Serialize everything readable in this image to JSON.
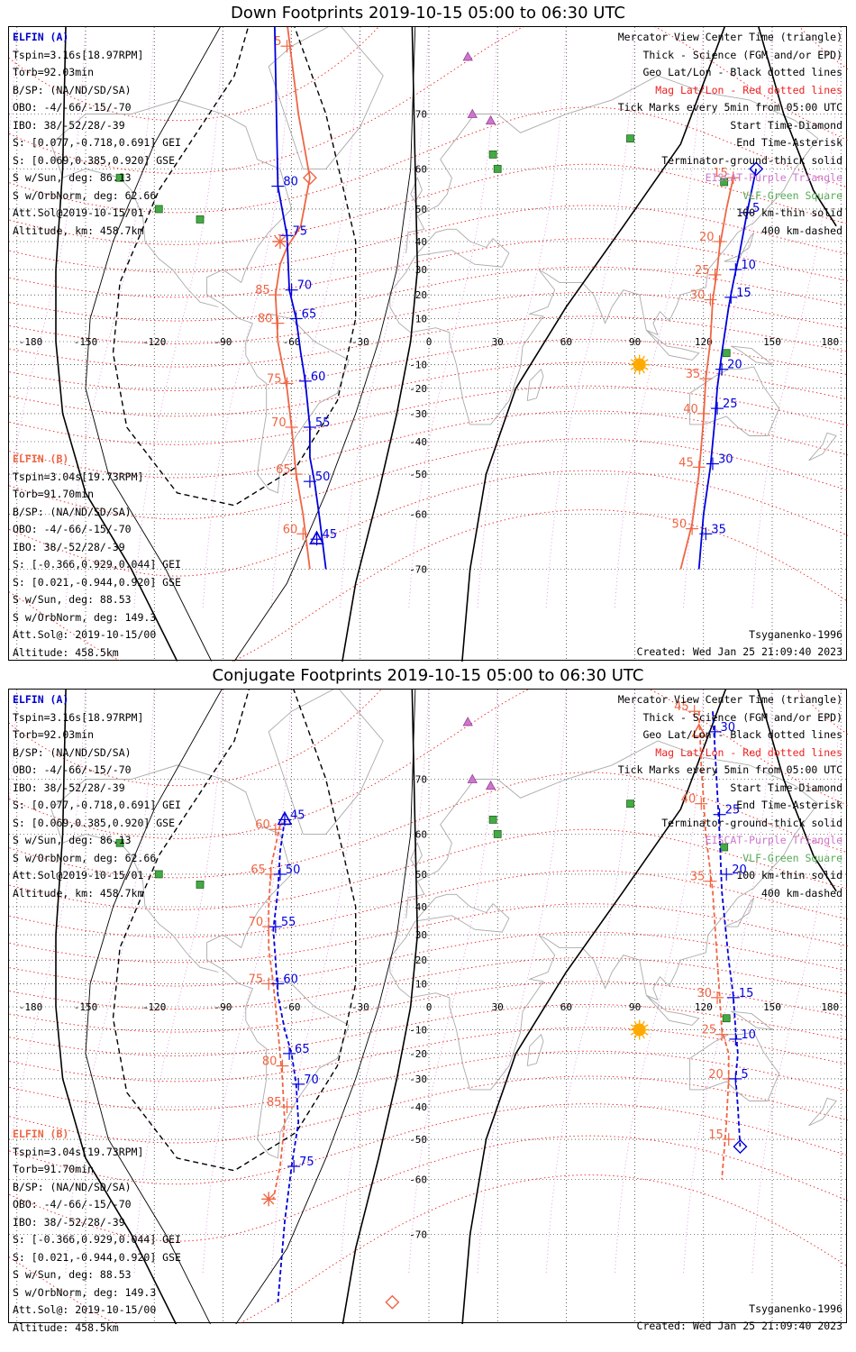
{
  "panels": [
    {
      "title": "Down Footprints 2019-10-15 05:00 to 06:30 UTC",
      "mode": "down"
    },
    {
      "title": "Conjugate Footprints 2019-10-15 05:00 to 06:30 UTC",
      "mode": "conjugate"
    }
  ],
  "legend_a": {
    "heading": "ELFIN (A)",
    "lines": [
      "Tspin=3.16s[18.97RPM]",
      "Torb=92.03min",
      "B/SP: (NA/ND/SD/SA)",
      "OBO: -4/-66/-15/-70",
      "IBO: 38/-52/28/-39",
      "S: [0.077,-0.718,0.691] GEI",
      "S: [0.069,0.385,0.920] GSE",
      "S w/Sun, deg: 86.13",
      "S w/OrbNorm, deg: 62.66",
      "Att.Sol@2019-10-15/01",
      "Altitude, km: 458.7km"
    ]
  },
  "legend_b": {
    "heading": "ELFIN (B)",
    "lines": [
      "Tspin=3.04s[19.73RPM]",
      "Torb=91.70min",
      "B/SP: (NA/ND/SD/SA)",
      "OBO: -4/-66/-15/-70",
      "IBO: 38/-52/28/-39",
      "S: [-0.366,0.929,0.044] GEI",
      "S: [0.021,-0.944,0.920] GSE",
      "S w/Sun, deg: 88.53",
      "S w/OrbNorm, deg: 149.3",
      "Att.Sol@: 2019-10-15/00",
      "Altitude: 458.5km"
    ]
  },
  "legend_right": [
    {
      "text": "Mercator View Center Time (triangle)",
      "color": "#000000"
    },
    {
      "text": "Thick - Science (FGM and/or EPD)",
      "color": "#000000"
    },
    {
      "text": "Geo Lat/Lon - Black dotted lines",
      "color": "#000000"
    },
    {
      "text": "Mag Lat/Lon - Red dotted lines",
      "color": "#ee2222"
    },
    {
      "text": "Tick Marks every 5min from 05:00 UTC",
      "color": "#000000"
    },
    {
      "text": "Start Time-Diamond",
      "color": "#000000"
    },
    {
      "text": "End Time-Asterisk",
      "color": "#000000"
    },
    {
      "text": "Terminator-ground-thick solid",
      "color": "#000000"
    },
    {
      "text": "EISCAT-Purple Triangle",
      "color": "#cc77cc"
    },
    {
      "text": "VLF-Green Square",
      "color": "#55aa55"
    },
    {
      "text": "100 km-thin solid",
      "color": "#000000"
    },
    {
      "text": "400 km-dashed",
      "color": "#000000"
    }
  ],
  "model": "Tsyganenko-1996",
  "created": "Created: Wed Jan 25 21:09:40 2023",
  "map": {
    "lon_ticks": [
      "-180",
      "-150",
      "-120",
      "-90",
      "-60",
      "-30",
      "0",
      "30",
      "60",
      "90",
      "120",
      "150",
      "180"
    ],
    "lat_ticks": [
      "70",
      "60",
      "50",
      "40",
      "30",
      "20",
      "10",
      "0",
      "-10",
      "-20",
      "-30",
      "-40",
      "-50",
      "-60",
      "-70"
    ]
  },
  "colors": {
    "elfin_a": "#0000dd",
    "elfin_b": "#ee6644",
    "mag_grid": "#ee2222",
    "geo_grid": "#000000",
    "eiscat": "#cc77cc",
    "vlf": "#44aa44",
    "sun": "#ffaa00",
    "coast": "#aaaaaa"
  },
  "stations": {
    "eiscat": [
      [
        17,
        77
      ],
      [
        19,
        70
      ],
      [
        27,
        69
      ]
    ],
    "vlf": [
      [
        -135,
        58
      ],
      [
        -118,
        50
      ],
      [
        -100,
        47
      ],
      [
        28,
        63
      ],
      [
        30,
        60
      ],
      [
        88,
        66
      ],
      [
        129,
        57
      ],
      [
        130,
        -5
      ]
    ]
  },
  "sun_position": [
    92,
    -10
  ],
  "tracks": {
    "down": {
      "a1": {
        "points": [
          [
            -68,
            85
          ],
          [
            -66,
            56
          ],
          [
            -62,
            42
          ],
          [
            -61,
            22
          ],
          [
            -58,
            10
          ],
          [
            -56,
            -5
          ],
          [
            -54,
            -17
          ],
          [
            -52,
            -35
          ],
          [
            -52,
            -45
          ],
          [
            -50,
            -52
          ],
          [
            -48,
            -60
          ],
          [
            -45,
            -70
          ]
        ],
        "labels": [
          {
            "t": "80",
            "lon": -66,
            "lat": 56
          },
          {
            "t": "75",
            "lon": -62,
            "lat": 42
          },
          {
            "t": "70",
            "lon": -60,
            "lat": 22
          },
          {
            "t": "65",
            "lon": -58,
            "lat": 10
          },
          {
            "t": "60",
            "lon": -54,
            "lat": -17
          },
          {
            "t": "55",
            "lon": -52,
            "lat": -35
          },
          {
            "t": "50",
            "lon": -52,
            "lat": -52
          },
          {
            "t": "45",
            "lon": -49,
            "lat": -65
          }
        ]
      },
      "b1": {
        "points": [
          [
            -62,
            80
          ],
          [
            -57,
            70
          ],
          [
            -52,
            58
          ],
          [
            -56,
            45
          ],
          [
            -62,
            38
          ],
          [
            -65,
            32
          ],
          [
            -67,
            20
          ],
          [
            -66,
            0
          ],
          [
            -62,
            -20
          ],
          [
            -60,
            -35
          ],
          [
            -58,
            -50
          ],
          [
            -55,
            -60
          ],
          [
            -52,
            -70
          ]
        ],
        "labels": [
          {
            "t": "5",
            "lon": -62,
            "lat": 78
          },
          {
            "t": "85",
            "lon": -67,
            "lat": 20
          },
          {
            "t": "80",
            "lon": -66,
            "lat": 8
          },
          {
            "t": "75",
            "lon": -62,
            "lat": -18
          },
          {
            "t": "70",
            "lon": -60,
            "lat": -35
          },
          {
            "t": "65",
            "lon": -58,
            "lat": -50
          },
          {
            "t": "60",
            "lon": -55,
            "lat": -64
          }
        ]
      },
      "a2": {
        "points": [
          [
            143,
            60
          ],
          [
            139,
            49
          ],
          [
            136,
            37
          ],
          [
            133,
            25
          ],
          [
            131,
            15
          ],
          [
            128,
            -5
          ],
          [
            126,
            -20
          ],
          [
            125,
            -32
          ],
          [
            123,
            -48
          ],
          [
            120,
            -60
          ],
          [
            118,
            -70
          ]
        ],
        "labels": [
          {
            "t": "5",
            "lon": 139,
            "lat": 49
          },
          {
            "t": "10",
            "lon": 134,
            "lat": 30
          },
          {
            "t": "15",
            "lon": 132,
            "lat": 19
          },
          {
            "t": "20",
            "lon": 128,
            "lat": -12
          },
          {
            "t": "25",
            "lon": 126,
            "lat": -28
          },
          {
            "t": "30",
            "lon": 124,
            "lat": -47
          },
          {
            "t": "35",
            "lon": 121,
            "lat": -64
          }
        ]
      },
      "b2": {
        "points": [
          [
            133,
            58
          ],
          [
            130,
            50
          ],
          [
            127,
            38
          ],
          [
            126,
            30
          ],
          [
            124,
            18
          ],
          [
            123,
            0
          ],
          [
            121,
            -16
          ],
          [
            120,
            -32
          ],
          [
            118,
            -50
          ],
          [
            115,
            -62
          ],
          [
            110,
            -70
          ]
        ],
        "labels": [
          {
            "t": "15",
            "lon": 133,
            "lat": 58
          },
          {
            "t": "20",
            "lon": 127,
            "lat": 40
          },
          {
            "t": "25",
            "lon": 125,
            "lat": 28
          },
          {
            "t": "30",
            "lon": 123,
            "lat": 18
          },
          {
            "t": "35",
            "lon": 121,
            "lat": -16
          },
          {
            "t": "40",
            "lon": 120,
            "lat": -30
          },
          {
            "t": "45",
            "lon": 118,
            "lat": -48
          },
          {
            "t": "50",
            "lon": 115,
            "lat": -63
          }
        ]
      },
      "start_a": [
        143,
        60
      ],
      "start_b": [
        -52,
        58
      ],
      "end_b": [
        -65,
        40
      ],
      "view_a": [
        -49,
        -65
      ]
    },
    "conjugate": {
      "a1": {
        "points": [
          [
            -63,
            63
          ],
          [
            -65,
            56
          ],
          [
            -66,
            45
          ],
          [
            -68,
            32
          ],
          [
            -67,
            20
          ],
          [
            -66,
            5
          ],
          [
            -63,
            -10
          ],
          [
            -60,
            -20
          ],
          [
            -58,
            -32
          ],
          [
            -57,
            -45
          ],
          [
            -60,
            -57
          ],
          [
            -63,
            -68
          ],
          [
            -66,
            -78
          ]
        ],
        "labels": [
          {
            "t": "45",
            "lon": -63,
            "lat": 63
          },
          {
            "t": "50",
            "lon": -65,
            "lat": 50
          },
          {
            "t": "55",
            "lon": -67,
            "lat": 33
          },
          {
            "t": "60",
            "lon": -66,
            "lat": 10
          },
          {
            "t": "65",
            "lon": -61,
            "lat": -20
          },
          {
            "t": "70",
            "lon": -57,
            "lat": -32
          },
          {
            "t": "75",
            "lon": -59,
            "lat": -57
          }
        ]
      },
      "b1": {
        "points": [
          [
            -65,
            62
          ],
          [
            -69,
            52
          ],
          [
            -70,
            40
          ],
          [
            -70,
            25
          ],
          [
            -68,
            10
          ],
          [
            -66,
            -10
          ],
          [
            -64,
            -30
          ],
          [
            -63,
            -45
          ],
          [
            -65,
            -57
          ],
          [
            -68,
            -64
          ]
        ],
        "labels": [
          {
            "t": "60",
            "lon": -67,
            "lat": 61
          },
          {
            "t": "65",
            "lon": -69,
            "lat": 50
          },
          {
            "t": "70",
            "lon": -70,
            "lat": 33
          },
          {
            "t": "75",
            "lon": -70,
            "lat": 10
          },
          {
            "t": "80",
            "lon": -64,
            "lat": -25
          },
          {
            "t": "85",
            "lon": -62,
            "lat": -40
          }
        ]
      },
      "a2": {
        "points": [
          [
            124,
            78
          ],
          [
            125,
            74
          ],
          [
            127,
            60
          ],
          [
            128,
            45
          ],
          [
            131,
            20
          ],
          [
            133,
            5
          ],
          [
            134,
            -10
          ],
          [
            135,
            -20
          ],
          [
            134,
            -30
          ],
          [
            135,
            -40
          ],
          [
            136,
            -52
          ]
        ],
        "labels": [
          {
            "t": "30",
            "lon": 125,
            "lat": 76
          },
          {
            "t": "25",
            "lon": 127,
            "lat": 64
          },
          {
            "t": "20",
            "lon": 130,
            "lat": 50
          },
          {
            "t": "15",
            "lon": 133,
            "lat": 4
          },
          {
            "t": "10",
            "lon": 134,
            "lat": -14
          },
          {
            "t": "5",
            "lon": 134,
            "lat": -30
          }
        ]
      },
      "b2": {
        "points": [
          [
            118,
            78
          ],
          [
            119,
            72
          ],
          [
            121,
            60
          ],
          [
            124,
            45
          ],
          [
            126,
            20
          ],
          [
            128,
            -10
          ],
          [
            131,
            -20
          ],
          [
            131,
            -30
          ],
          [
            130,
            -45
          ],
          [
            128,
            -60
          ]
        ],
        "labels": [
          {
            "t": "45",
            "lon": 116,
            "lat": 78
          },
          {
            "t": "40",
            "lon": 119,
            "lat": 66
          },
          {
            "t": "35",
            "lon": 123,
            "lat": 48
          },
          {
            "t": "30",
            "lon": 126,
            "lat": 4
          },
          {
            "t": "25",
            "lon": 128,
            "lat": -12
          },
          {
            "t": "20",
            "lon": 131,
            "lat": -30
          },
          {
            "t": "15",
            "lon": 131,
            "lat": -50
          }
        ]
      },
      "start_a": [
        136,
        -52
      ],
      "start_b": [
        -16,
        -78
      ],
      "end_b": [
        -70,
        -64
      ],
      "view_a": [
        -63,
        63
      ],
      "view_b": [
        118,
        76
      ]
    }
  }
}
